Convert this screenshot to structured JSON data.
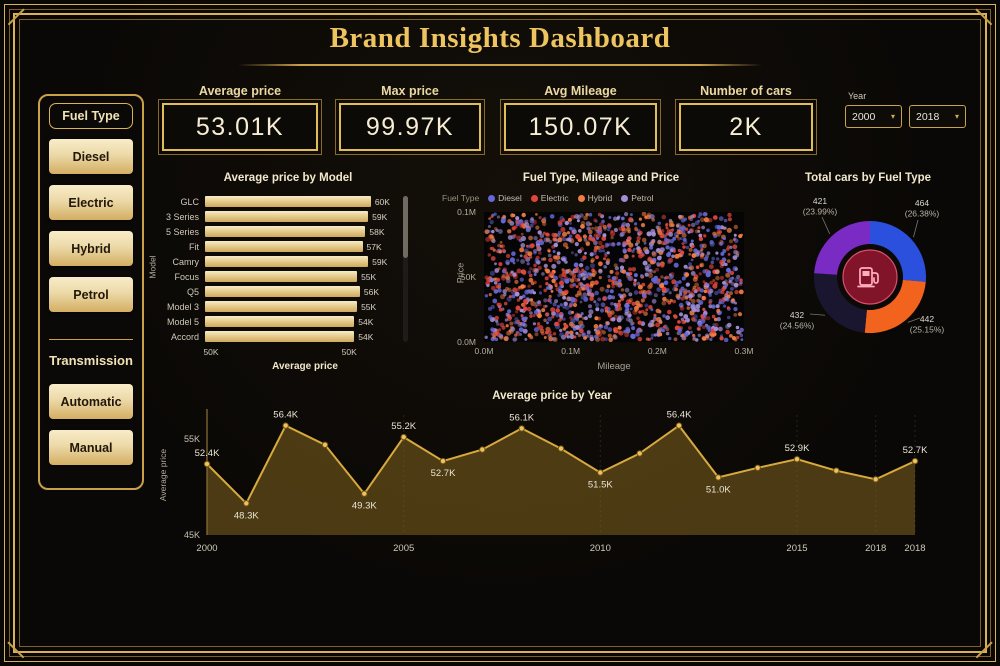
{
  "title": "Brand Insights Dashboard",
  "theme": {
    "gold": "#d9b258",
    "gold_dim": "#7d6128",
    "cream_button": "#eed9a4",
    "card_text": "#f6edd3",
    "background": "#0a0806"
  },
  "sidebar": {
    "fuel_type": {
      "title": "Fuel Type",
      "options": [
        "Diesel",
        "Electric",
        "Hybrid",
        "Petrol"
      ]
    },
    "transmission": {
      "title": "Transmission",
      "options": [
        "Automatic",
        "Manual"
      ]
    }
  },
  "kpis": [
    {
      "label": "Average price",
      "value": "53.01K"
    },
    {
      "label": "Max price",
      "value": "99.97K"
    },
    {
      "label": "Avg Mileage",
      "value": "150.07K"
    },
    {
      "label": "Number of cars",
      "value": "2K"
    }
  ],
  "year_filter": {
    "label": "Year",
    "values": [
      "2000",
      "2018"
    ]
  },
  "chart_data": [
    {
      "type": "bar",
      "orientation": "horizontal",
      "title": "Average price by Model",
      "categories": [
        "GLC",
        "3 Series",
        "5 Series",
        "Fit",
        "Camry",
        "Focus",
        "Q5",
        "Model 3",
        "Model 5",
        "Accord"
      ],
      "values": [
        60,
        59,
        58,
        57,
        59,
        55,
        56,
        55,
        54,
        54
      ],
      "value_labels": [
        "60K",
        "59K",
        "58K",
        "57K",
        "59K",
        "55K",
        "56K",
        "55K",
        "54K",
        "54K"
      ],
      "xlabel": "Average price",
      "ylabel": "Model",
      "x_ticks": [
        "50K",
        "50K"
      ],
      "xlim": [
        0,
        68
      ],
      "bar_color": "#e9d194"
    },
    {
      "type": "scatter",
      "title": "Fuel Type, Mileage and Price",
      "legend_title": "Fuel Type",
      "series": [
        {
          "name": "Diesel",
          "color": "#6668d8"
        },
        {
          "name": "Electric",
          "color": "#e2453a"
        },
        {
          "name": "Hybrid",
          "color": "#ef7d45"
        },
        {
          "name": "Petrol",
          "color": "#a48fd6"
        }
      ],
      "xlabel": "Mileage",
      "ylabel": "Price",
      "x_ticks": [
        "0.0M",
        "0.1M",
        "0.2M",
        "0.3M"
      ],
      "y_ticks": [
        "0.1M",
        "50K",
        "0.0M"
      ],
      "x_range": [
        0,
        300000
      ],
      "y_range": [
        0,
        100000
      ],
      "appearance": "dense random point cloud"
    },
    {
      "type": "pie",
      "title": "Total cars by Fuel Type",
      "segments": [
        {
          "value": 464,
          "label": "464",
          "sublabel": "(26.38%)",
          "color": "#2b50dd",
          "label_pos": "tr"
        },
        {
          "value": 442,
          "label": "442",
          "sublabel": "(25.15%)",
          "color": "#f2641e",
          "label_pos": "br"
        },
        {
          "value": 432,
          "label": "432",
          "sublabel": "(24.56%)",
          "color": "#1a1630",
          "label_pos": "bl"
        },
        {
          "value": 421,
          "label": "421",
          "sublabel": "(23.99%)",
          "color": "#7a2bc4",
          "label_pos": "tl"
        }
      ],
      "center_icon": "fuel-pump-icon",
      "center_color": "#821429"
    },
    {
      "type": "area",
      "title": "Average price by Year",
      "x_years": [
        2000,
        2001,
        2002,
        2003,
        2004,
        2005,
        2006,
        2007,
        2008,
        2009,
        2010,
        2011,
        2012,
        2013,
        2014,
        2015,
        2016,
        2017,
        2018
      ],
      "values": [
        52.4,
        48.3,
        56.4,
        54.4,
        49.3,
        55.2,
        52.7,
        53.9,
        56.1,
        54.0,
        51.5,
        53.5,
        56.4,
        51.0,
        52.0,
        52.9,
        51.7,
        50.8,
        52.7
      ],
      "point_labels": [
        {
          "i": 0,
          "text": "52.4K",
          "pos": "above"
        },
        {
          "i": 1,
          "text": "48.3K",
          "pos": "below"
        },
        {
          "i": 2,
          "text": "56.4K",
          "pos": "above"
        },
        {
          "i": 4,
          "text": "49.3K",
          "pos": "below"
        },
        {
          "i": 5,
          "text": "55.2K",
          "pos": "above"
        },
        {
          "i": 6,
          "text": "52.7K",
          "pos": "below"
        },
        {
          "i": 8,
          "text": "56.1K",
          "pos": "above"
        },
        {
          "i": 10,
          "text": "51.5K",
          "pos": "below"
        },
        {
          "i": 12,
          "text": "56.4K",
          "pos": "above"
        },
        {
          "i": 13,
          "text": "51.0K",
          "pos": "below"
        },
        {
          "i": 15,
          "text": "52.9K",
          "pos": "above"
        },
        {
          "i": 18,
          "text": "52.7K",
          "pos": "above"
        }
      ],
      "ylabel": "Average price",
      "xlabel": "",
      "y_ticks": [
        "55K",
        "45K"
      ],
      "x_ticks": [
        "2000",
        "2005",
        "2010",
        "2015",
        "2018",
        "2018"
      ],
      "ylim": [
        45,
        57.5
      ],
      "line_color": "#d8aa3e"
    }
  ]
}
